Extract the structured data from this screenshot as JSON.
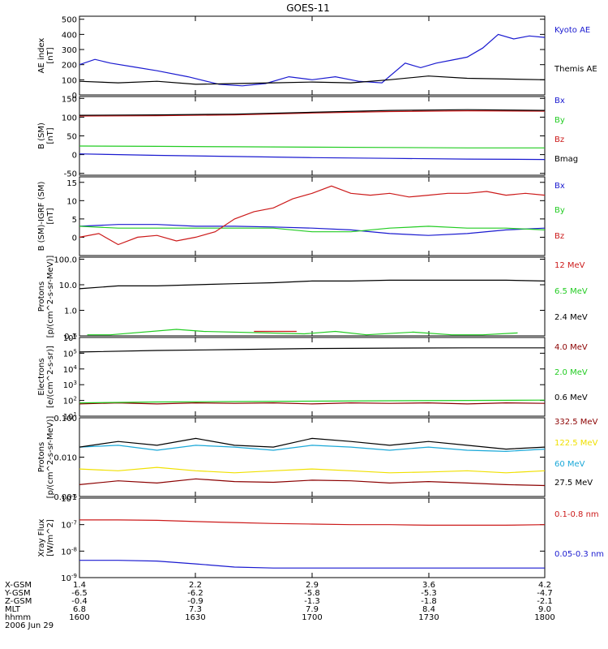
{
  "title": "GOES-11",
  "footer_date": "2006 Jun 29",
  "x_rows": [
    {
      "label": "X-GSM",
      "values": [
        "1.4",
        "2.2",
        "2.9",
        "3.6",
        "4.2"
      ]
    },
    {
      "label": "Y-GSM",
      "values": [
        "-6.5",
        "-6.2",
        "-5.8",
        "-5.3",
        "-4.7"
      ]
    },
    {
      "label": "Z-GSM",
      "values": [
        "-0.4",
        "-0.9",
        "-1.3",
        "-1.8",
        "-2.1"
      ]
    },
    {
      "label": "MLT",
      "values": [
        "6.8",
        "7.3",
        "7.9",
        "8.4",
        "9.0"
      ]
    },
    {
      "label": "hhmm",
      "values": [
        "1600",
        "1630",
        "1700",
        "1730",
        "1800"
      ]
    }
  ],
  "colors": {
    "black": "#000000",
    "blue": "#1a1ad0",
    "green": "#22cc22",
    "red": "#cc1a1a",
    "darkred": "#8b0000",
    "yellow": "#f0e000",
    "cyan": "#1aa8d8"
  },
  "chart_data": [
    {
      "type": "line",
      "ylabel_lines": [
        "AE index",
        "[nT]"
      ],
      "x_range": [
        0,
        120
      ],
      "ylim": [
        0,
        520
      ],
      "yticks": [
        {
          "v": 0,
          "t": "0"
        },
        {
          "v": 100,
          "t": "100"
        },
        {
          "v": 200,
          "t": "200"
        },
        {
          "v": 300,
          "t": "300"
        },
        {
          "v": 400,
          "t": "400"
        },
        {
          "v": 500,
          "t": "500"
        }
      ],
      "series": [
        {
          "name": "Kyoto AE",
          "color": "blue",
          "x": [
            0,
            4,
            8,
            14,
            20,
            28,
            36,
            42,
            48,
            54,
            60,
            66,
            72,
            78,
            84,
            88,
            92,
            96,
            100,
            104,
            108,
            112,
            116,
            120
          ],
          "values": [
            200,
            235,
            210,
            185,
            160,
            120,
            70,
            60,
            75,
            120,
            100,
            120,
            90,
            80,
            210,
            180,
            210,
            230,
            250,
            310,
            400,
            370,
            390,
            380
          ]
        },
        {
          "name": "Themis AE",
          "color": "black",
          "x": [
            0,
            10,
            20,
            30,
            40,
            50,
            60,
            70,
            80,
            90,
            100,
            110,
            120
          ],
          "values": [
            90,
            80,
            90,
            70,
            75,
            80,
            85,
            80,
            100,
            125,
            110,
            105,
            100
          ]
        }
      ]
    },
    {
      "type": "line",
      "ylabel_lines": [
        "B (SM)",
        "[nT]"
      ],
      "x_range": [
        0,
        120
      ],
      "ylim": [
        -55,
        155
      ],
      "yticks": [
        {
          "v": -50,
          "t": "-50"
        },
        {
          "v": 0,
          "t": "0"
        },
        {
          "v": 50,
          "t": "50"
        },
        {
          "v": 100,
          "t": "100"
        },
        {
          "v": 150,
          "t": "150"
        }
      ],
      "series": [
        {
          "name": "Bx",
          "color": "blue",
          "x": [
            0,
            20,
            40,
            60,
            80,
            100,
            120
          ],
          "values": [
            2,
            -2,
            -5,
            -8,
            -10,
            -12,
            -13
          ]
        },
        {
          "name": "By",
          "color": "green",
          "x": [
            0,
            20,
            40,
            60,
            80,
            100,
            120
          ],
          "values": [
            23,
            22,
            21,
            20,
            19,
            18,
            18
          ]
        },
        {
          "name": "Bz",
          "color": "red",
          "x": [
            0,
            20,
            40,
            60,
            80,
            100,
            120
          ],
          "values": [
            103,
            104,
            106,
            111,
            115,
            117,
            116
          ]
        },
        {
          "name": "Bmag",
          "color": "black",
          "x": [
            0,
            20,
            40,
            60,
            80,
            100,
            120
          ],
          "values": [
            105,
            106,
            108,
            113,
            118,
            120,
            118
          ]
        }
      ]
    },
    {
      "type": "line",
      "ylabel_lines": [
        "B (SM)-IGRF (SM)",
        "[nT]"
      ],
      "x_range": [
        0,
        120
      ],
      "ylim": [
        -5,
        16.5
      ],
      "yticks": [
        {
          "v": 0,
          "t": "0"
        },
        {
          "v": 5,
          "t": "5"
        },
        {
          "v": 10,
          "t": "10"
        },
        {
          "v": 15,
          "t": "15"
        }
      ],
      "series": [
        {
          "name": "Bx",
          "color": "blue",
          "x": [
            0,
            10,
            20,
            30,
            40,
            50,
            60,
            70,
            80,
            90,
            100,
            110,
            120
          ],
          "values": [
            3,
            3.5,
            3.5,
            3,
            3,
            2.8,
            2.5,
            2,
            1,
            0.5,
            1,
            2,
            2.5
          ]
        },
        {
          "name": "By",
          "color": "green",
          "x": [
            0,
            10,
            20,
            30,
            40,
            50,
            60,
            70,
            80,
            90,
            100,
            110,
            120
          ],
          "values": [
            3,
            2.5,
            2.5,
            2.5,
            2.5,
            2.5,
            1.5,
            1.5,
            2.5,
            3,
            2.5,
            2.5,
            2
          ]
        },
        {
          "name": "Bz",
          "color": "red",
          "x": [
            0,
            5,
            10,
            15,
            20,
            25,
            30,
            35,
            40,
            45,
            50,
            55,
            60,
            65,
            70,
            75,
            80,
            85,
            90,
            95,
            100,
            105,
            110,
            115,
            120
          ],
          "values": [
            0,
            1,
            -2,
            0,
            0.5,
            -1,
            0,
            1.5,
            5,
            7,
            8,
            10.5,
            12,
            14,
            12,
            11.5,
            12,
            11,
            11.5,
            12,
            12,
            12.5,
            11.5,
            12,
            11.5
          ]
        }
      ]
    },
    {
      "type": "line",
      "ylabel_lines": [
        "Protons",
        "[p/(cm^2-s-sr-MeV)]"
      ],
      "log": true,
      "x_range": [
        0,
        120
      ],
      "ylim": [
        0.1,
        120
      ],
      "yticks": [
        {
          "v": 0.1,
          "t": "0.1"
        },
        {
          "v": 1,
          "t": "1.0"
        },
        {
          "v": 10,
          "t": "10.0"
        },
        {
          "v": 100,
          "t": "100.0"
        }
      ],
      "series": [
        {
          "name": "12 MeV",
          "color": "red",
          "x": [
            45,
            50,
            52,
            56
          ],
          "values": [
            0.15,
            0.15,
            0.15,
            0.15
          ]
        },
        {
          "name": "6.5 MeV",
          "color": "green",
          "x": [
            2,
            8,
            25,
            32,
            58,
            66,
            74,
            86,
            96,
            104,
            113
          ],
          "values": [
            0.11,
            0.11,
            0.18,
            0.15,
            0.12,
            0.15,
            0.11,
            0.14,
            0.11,
            0.11,
            0.13
          ]
        },
        {
          "name": "2.4 MeV",
          "color": "black",
          "x": [
            0,
            10,
            20,
            30,
            40,
            50,
            60,
            70,
            80,
            90,
            100,
            110,
            120
          ],
          "values": [
            7,
            9,
            9,
            10,
            11,
            12,
            14,
            14,
            15,
            15,
            15,
            15,
            14
          ]
        }
      ]
    },
    {
      "type": "line",
      "ylabel_lines": [
        "Electrons",
        "[e/(cm^2-s-sr)]"
      ],
      "log": true,
      "x_range": [
        0,
        120
      ],
      "ylim": [
        10,
        1000000
      ],
      "yticks": [
        {
          "v": 10,
          "t": "10^1"
        },
        {
          "v": 100,
          "t": "10^2"
        },
        {
          "v": 1000,
          "t": "10^3"
        },
        {
          "v": 10000,
          "t": "10^4"
        },
        {
          "v": 100000,
          "t": "10^5"
        },
        {
          "v": 1000000,
          "t": "10^6"
        }
      ],
      "series": [
        {
          "name": "4.0 MeV",
          "color": "darkred",
          "x": [
            0,
            10,
            20,
            30,
            40,
            50,
            60,
            70,
            80,
            90,
            100,
            110,
            120
          ],
          "values": [
            60,
            70,
            60,
            70,
            65,
            70,
            60,
            70,
            65,
            70,
            60,
            70,
            65
          ]
        },
        {
          "name": "2.0 MeV",
          "color": "green",
          "x": [
            0,
            20,
            40,
            60,
            80,
            100,
            120
          ],
          "values": [
            70,
            80,
            85,
            90,
            95,
            100,
            105
          ]
        },
        {
          "name": "0.6 MeV",
          "color": "black",
          "x": [
            0,
            20,
            40,
            60,
            80,
            100,
            120
          ],
          "values": [
            120000,
            150000,
            170000,
            200000,
            210000,
            220000,
            220000
          ]
        }
      ]
    },
    {
      "type": "line",
      "ylabel_lines": [
        "Protons",
        "[p/(cm^2-s-sr-MeV)]"
      ],
      "log": true,
      "x_range": [
        0,
        120
      ],
      "ylim": [
        0.001,
        0.1
      ],
      "yticks": [
        {
          "v": 0.001,
          "t": "0.001"
        },
        {
          "v": 0.01,
          "t": "0.010"
        },
        {
          "v": 0.1,
          "t": "0.100"
        }
      ],
      "series": [
        {
          "name": "332.5 MeV",
          "color": "darkred",
          "x": [
            0,
            10,
            20,
            30,
            40,
            50,
            60,
            70,
            80,
            90,
            100,
            110,
            120
          ],
          "values": [
            0.002,
            0.0025,
            0.0022,
            0.0028,
            0.0024,
            0.0023,
            0.0026,
            0.0025,
            0.0022,
            0.0024,
            0.0022,
            0.002,
            0.0019
          ]
        },
        {
          "name": "122.5 MeV",
          "color": "yellow",
          "x": [
            0,
            10,
            20,
            30,
            40,
            50,
            60,
            70,
            80,
            90,
            100,
            110,
            120
          ],
          "values": [
            0.005,
            0.0045,
            0.0055,
            0.0045,
            0.004,
            0.0045,
            0.005,
            0.0045,
            0.004,
            0.0042,
            0.0045,
            0.004,
            0.0045
          ]
        },
        {
          "name": "60 MeV",
          "color": "cyan",
          "x": [
            0,
            10,
            20,
            30,
            40,
            50,
            60,
            70,
            80,
            90,
            100,
            110,
            120
          ],
          "values": [
            0.018,
            0.02,
            0.015,
            0.02,
            0.018,
            0.015,
            0.02,
            0.018,
            0.015,
            0.018,
            0.015,
            0.014,
            0.016
          ]
        },
        {
          "name": "27.5 MeV",
          "color": "black",
          "x": [
            0,
            10,
            20,
            30,
            40,
            50,
            60,
            70,
            80,
            90,
            100,
            110,
            120
          ],
          "values": [
            0.018,
            0.025,
            0.02,
            0.03,
            0.02,
            0.018,
            0.03,
            0.025,
            0.02,
            0.025,
            0.02,
            0.016,
            0.018
          ]
        }
      ]
    },
    {
      "type": "line",
      "ylabel_lines": [
        "Xray Flux",
        "[W/m^2]"
      ],
      "log": true,
      "x_range": [
        0,
        120
      ],
      "ylim": [
        1e-09,
        1e-06
      ],
      "yticks": [
        {
          "v": 1e-09,
          "t": "10^-9"
        },
        {
          "v": 1e-08,
          "t": "10^-8"
        },
        {
          "v": 1e-07,
          "t": "10^-7"
        },
        {
          "v": 1e-06,
          "t": "10^-6"
        }
      ],
      "series": [
        {
          "name": "0.1-0.8 nm",
          "color": "red",
          "x": [
            0,
            10,
            20,
            30,
            40,
            50,
            60,
            70,
            80,
            90,
            100,
            110,
            120
          ],
          "values": [
            1.5e-07,
            1.5e-07,
            1.45e-07,
            1.3e-07,
            1.2e-07,
            1.1e-07,
            1.05e-07,
            1e-07,
            1e-07,
            9.5e-08,
            9.5e-08,
            9.5e-08,
            1e-07
          ]
        },
        {
          "name": "0.05-0.3 nm",
          "color": "blue",
          "x": [
            0,
            10,
            20,
            30,
            40,
            50,
            60,
            70,
            80,
            90,
            100,
            110,
            120
          ],
          "values": [
            4.5e-09,
            4.5e-09,
            4.2e-09,
            3.3e-09,
            2.5e-09,
            2.3e-09,
            2.3e-09,
            2.3e-09,
            2.3e-09,
            2.3e-09,
            2.3e-09,
            2.3e-09,
            2.3e-09
          ]
        }
      ]
    }
  ]
}
